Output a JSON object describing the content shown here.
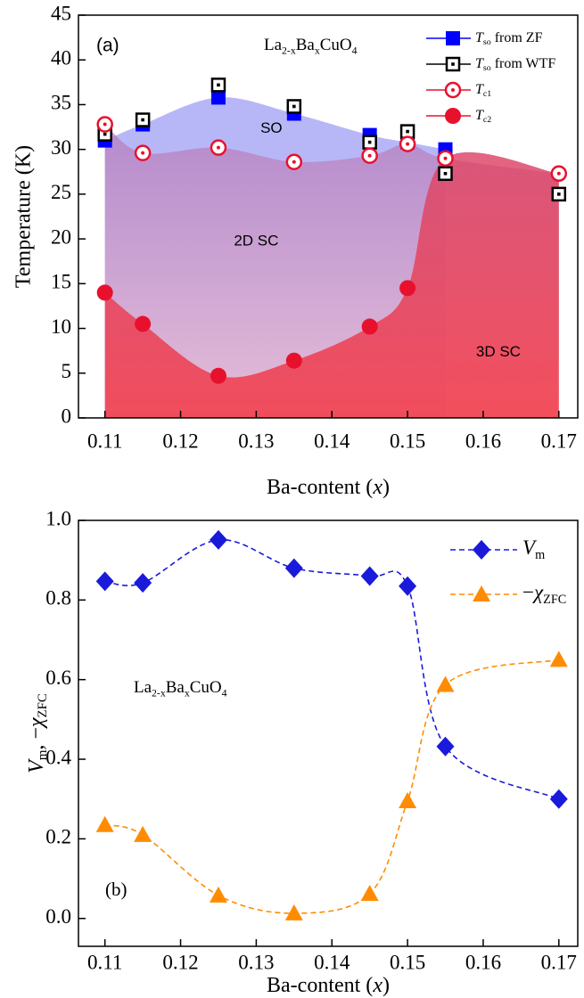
{
  "chart_data": [
    {
      "type": "scatter",
      "panel_label": "(a)",
      "title": [
        "La",
        "2-x",
        "Ba",
        "x",
        "CuO",
        "4"
      ],
      "annotations": [
        "SO",
        "2D SC",
        "3D SC"
      ],
      "xlabel": [
        "Ba-content (",
        "x",
        ")"
      ],
      "ylabel": "Temperature (K)",
      "xlim": [
        0.1065,
        0.1725
      ],
      "xticks": [
        0.11,
        0.12,
        0.13,
        0.14,
        0.15,
        0.16,
        0.17
      ],
      "ylim": [
        0,
        45
      ],
      "yticks": [
        0,
        5,
        10,
        15,
        20,
        25,
        30,
        35,
        40,
        45
      ],
      "series": [
        {
          "name": [
            "T",
            "so",
            " from ZF"
          ],
          "color": "#0000ff",
          "marker": "square",
          "x": [
            0.11,
            0.115,
            0.125,
            0.135,
            0.145,
            0.15,
            0.155
          ],
          "values": [
            31,
            32.8,
            35.8,
            34,
            31.6,
            30.8,
            30
          ]
        },
        {
          "name": [
            "T",
            "so",
            " from WTF"
          ],
          "color": "#000000",
          "marker": "open-square",
          "x": [
            0.11,
            0.115,
            0.125,
            0.135,
            0.145,
            0.15,
            0.155,
            0.17
          ],
          "values": [
            31.7,
            33.3,
            37.2,
            34.8,
            30.8,
            32,
            27.3,
            25
          ]
        },
        {
          "name": [
            "T",
            "c1"
          ],
          "color": "#e8112d",
          "marker": "open-circle",
          "x": [
            0.11,
            0.115,
            0.125,
            0.135,
            0.145,
            0.15,
            0.155,
            0.17
          ],
          "values": [
            32.8,
            29.6,
            30.2,
            28.6,
            29.3,
            30.6,
            29,
            27.3
          ]
        },
        {
          "name": [
            "T",
            "c2"
          ],
          "color": "#e8112d",
          "marker": "circle",
          "x": [
            0.11,
            0.115,
            0.125,
            0.135,
            0.145,
            0.15
          ],
          "values": [
            14,
            10.5,
            4.7,
            6.4,
            10.2,
            14.5
          ]
        }
      ]
    },
    {
      "type": "line",
      "panel_label": "(b)",
      "title": [
        "La",
        "2-x",
        "Ba",
        "x",
        "CuO",
        "4"
      ],
      "xlabel": [
        "Ba-content (",
        "x",
        ")"
      ],
      "ylabel": [
        "V",
        "m",
        ", −",
        "χ",
        "ZFC"
      ],
      "xlim": [
        0.1065,
        0.1725
      ],
      "xticks": [
        0.11,
        0.12,
        0.13,
        0.14,
        0.15,
        0.16,
        0.17
      ],
      "ylim": [
        -0.07,
        1.0
      ],
      "yticks": [
        {
          "value": 0,
          "label": "0.0"
        },
        0.2,
        0.4,
        0.6,
        0.8,
        {
          "value": 1,
          "label": "1.0"
        }
      ],
      "x": [
        0.11,
        0.115,
        0.125,
        0.135,
        0.145,
        0.15,
        0.155,
        0.17
      ],
      "series": [
        {
          "name": [
            "V",
            "m"
          ],
          "color": "#1a1adb",
          "marker": "diamond",
          "line": "dashed",
          "values": [
            0.847,
            0.843,
            0.951,
            0.88,
            0.86,
            0.835,
            0.432,
            0.3
          ]
        },
        {
          "name": [
            "−",
            "χ",
            "ZFC"
          ],
          "color": "#ff8c00",
          "marker": "triangle",
          "line": "dashed",
          "values": [
            0.235,
            0.21,
            0.058,
            0.013,
            0.062,
            0.295,
            0.587,
            0.65
          ]
        }
      ]
    }
  ]
}
